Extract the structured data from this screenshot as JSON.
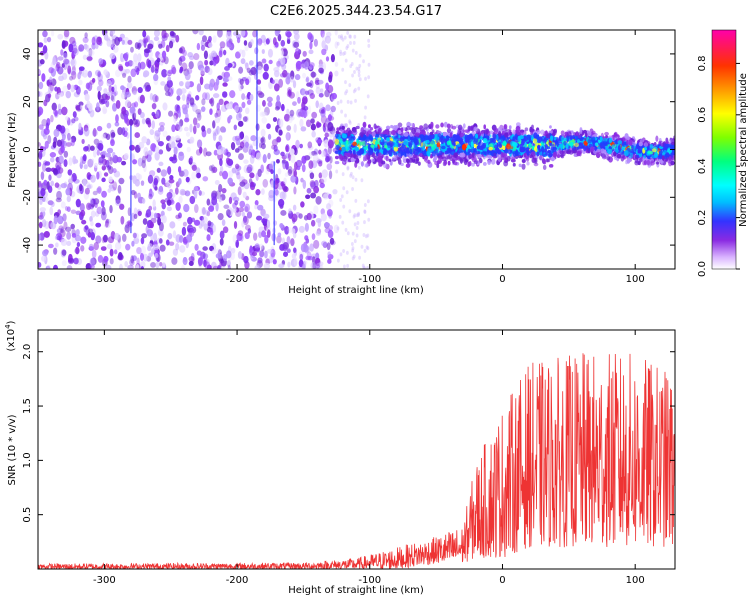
{
  "title": "C2E6.2025.344.23.54.G17",
  "chart_data": [
    {
      "type": "heatmap",
      "name": "spectrogram",
      "xlabel": "Height of straight line (km)",
      "ylabel": "Frequency (Hz)",
      "xlim": [
        -350,
        130
      ],
      "ylim": [
        -50,
        50
      ],
      "x_ticks": [
        -300,
        -200,
        -100,
        0,
        100
      ],
      "y_ticks": [
        -40,
        -20,
        0,
        20,
        40
      ],
      "colorbar": {
        "label": "Normalized spectral amplitude",
        "range": [
          0,
          0.93
        ],
        "ticks": [
          "0.0",
          "0.2",
          "0.4",
          "0.6",
          "0.8"
        ],
        "tick_values": [
          0,
          0.2,
          0.4,
          0.6,
          0.8
        ]
      },
      "description_regions": [
        {
          "x_range": [
            -350,
            -125
          ],
          "freq_range": [
            -50,
            50
          ],
          "level": "low_noise"
        },
        {
          "x_range": [
            -125,
            130
          ],
          "freq_range": [
            -8,
            8
          ],
          "level": "signal_band"
        }
      ]
    },
    {
      "type": "line",
      "name": "snr",
      "xlabel": "Height of straight line (km)",
      "ylabel": "SNR (10 * v/v)",
      "y_multiplier": "(x10",
      "y_multiplier_exp": "4",
      "y_multiplier_close": ")",
      "xlim": [
        -350,
        130
      ],
      "ylim": [
        0,
        2.2
      ],
      "x_ticks": [
        -300,
        -200,
        -100,
        0,
        100
      ],
      "y_ticks": [
        "0.5",
        "1.0",
        "1.5",
        "2.0"
      ],
      "y_tick_values": [
        0.5,
        1.0,
        1.5,
        2.0
      ],
      "color": "#ee3333",
      "envelope": [
        {
          "x": -350,
          "lo": 0.0,
          "hi": 0.05
        },
        {
          "x": -150,
          "lo": 0.0,
          "hi": 0.06
        },
        {
          "x": -110,
          "lo": 0.0,
          "hi": 0.1
        },
        {
          "x": -80,
          "lo": 0.0,
          "hi": 0.2
        },
        {
          "x": -50,
          "lo": 0.05,
          "hi": 0.3
        },
        {
          "x": -30,
          "lo": 0.05,
          "hi": 0.4
        },
        {
          "x": -20,
          "lo": 0.1,
          "hi": 1.0
        },
        {
          "x": 0,
          "lo": 0.1,
          "hi": 1.5
        },
        {
          "x": 20,
          "lo": 0.2,
          "hi": 1.9
        },
        {
          "x": 60,
          "lo": 0.2,
          "hi": 2.0
        },
        {
          "x": 100,
          "lo": 0.2,
          "hi": 2.0
        },
        {
          "x": 130,
          "lo": 0.2,
          "hi": 1.8
        }
      ]
    }
  ]
}
